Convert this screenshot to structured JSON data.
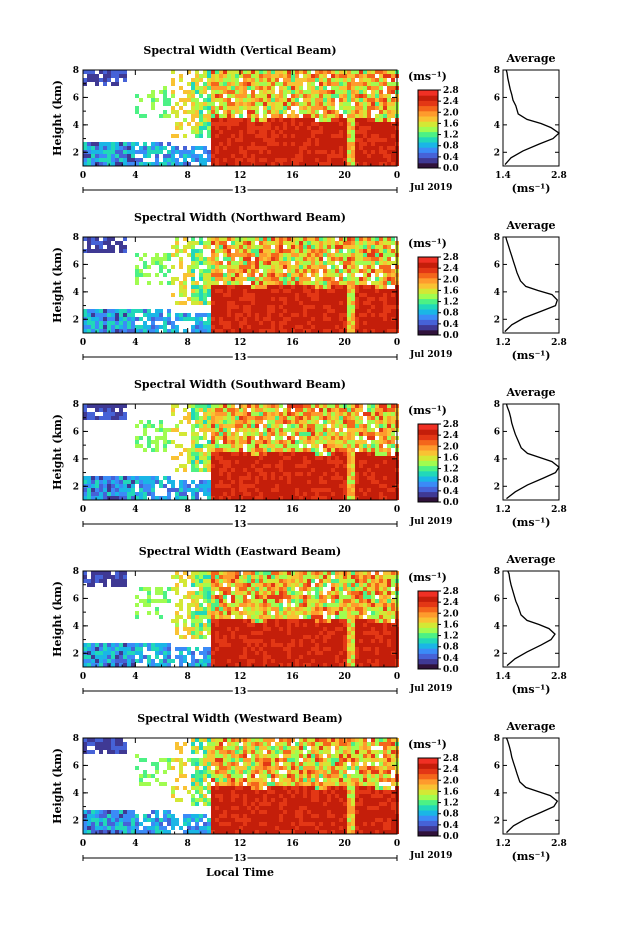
{
  "chart_data": [
    {
      "type": "heatmap",
      "title": "Spectral Width (Vertical Beam)",
      "xlabel": "",
      "ylabel": "Height (km)",
      "xlim": [
        0,
        24
      ],
      "ylim": [
        1,
        8
      ],
      "xticks": [
        "0",
        "4",
        "8",
        "12",
        "16",
        "20",
        "0"
      ],
      "yticks": [
        "2",
        "4",
        "6",
        "8"
      ],
      "date_center": "13",
      "date_label": "Jul 2019",
      "colorbar": {
        "unit": "(ms⁻¹)",
        "ticks": [
          "0.0",
          "0.4",
          "0.8",
          "1.2",
          "1.6",
          "2.0",
          "2.4",
          "2.8"
        ],
        "min": 0,
        "max": 2.8
      },
      "profile": {
        "title": "Average",
        "xlabel": "(ms⁻¹)",
        "xlim": [
          1.4,
          2.8
        ],
        "xticks": [
          "1.4",
          "2.8"
        ],
        "yticks": [
          "2",
          "4",
          "6",
          "8"
        ],
        "ylim": [
          1,
          8
        ],
        "x": [
          1.45,
          1.6,
          1.9,
          2.3,
          2.65,
          2.8,
          2.6,
          2.35,
          2.0,
          1.78,
          1.72,
          1.65,
          1.62,
          1.58,
          1.55,
          1.52,
          1.5,
          1.48
        ],
        "y": [
          1.1,
          1.6,
          2.1,
          2.6,
          3.0,
          3.4,
          3.8,
          4.1,
          4.4,
          4.8,
          5.4,
          5.8,
          6.2,
          6.6,
          7.0,
          7.4,
          7.8,
          8.0
        ]
      }
    },
    {
      "type": "heatmap",
      "title": "Spectral Width (Northward Beam)",
      "xlabel": "",
      "ylabel": "Height (km)",
      "xlim": [
        0,
        24
      ],
      "ylim": [
        1,
        8
      ],
      "xticks": [
        "0",
        "4",
        "8",
        "12",
        "16",
        "20",
        "0"
      ],
      "yticks": [
        "2",
        "4",
        "6",
        "8"
      ],
      "date_center": "13",
      "date_label": "Jul 2019",
      "colorbar": {
        "unit": "(ms⁻¹)",
        "ticks": [
          "0.0",
          "0.4",
          "0.8",
          "1.2",
          "1.6",
          "2.0",
          "2.4",
          "2.8"
        ],
        "min": 0,
        "max": 2.8
      },
      "profile": {
        "title": "Average",
        "xlabel": "(ms⁻¹)",
        "xlim": [
          1.2,
          2.8
        ],
        "xticks": [
          "1.2",
          "2.8"
        ],
        "yticks": [
          "2",
          "4",
          "6",
          "8"
        ],
        "ylim": [
          1,
          8
        ],
        "x": [
          1.25,
          1.45,
          1.8,
          2.3,
          2.7,
          2.75,
          2.6,
          2.2,
          1.85,
          1.7,
          1.6,
          1.55,
          1.5,
          1.45,
          1.4,
          1.35,
          1.3,
          1.28
        ],
        "y": [
          1.1,
          1.6,
          2.1,
          2.6,
          3.0,
          3.4,
          3.8,
          4.1,
          4.4,
          4.8,
          5.4,
          5.8,
          6.2,
          6.6,
          7.0,
          7.4,
          7.8,
          8.0
        ]
      }
    },
    {
      "type": "heatmap",
      "title": "Spectral Width (Southward Beam)",
      "xlabel": "",
      "ylabel": "Height (km)",
      "xlim": [
        0,
        24
      ],
      "ylim": [
        1,
        8
      ],
      "xticks": [
        "0",
        "4",
        "8",
        "12",
        "16",
        "20",
        "0"
      ],
      "yticks": [
        "2",
        "4",
        "6",
        "8"
      ],
      "date_center": "13",
      "date_label": "Jul 2019",
      "colorbar": {
        "unit": "(ms⁻¹)",
        "ticks": [
          "0.0",
          "0.4",
          "0.8",
          "1.2",
          "1.6",
          "2.0",
          "2.4",
          "2.8"
        ],
        "min": 0,
        "max": 2.8
      },
      "profile": {
        "title": "Average",
        "xlabel": "(ms⁻¹)",
        "xlim": [
          1.2,
          2.8
        ],
        "xticks": [
          "1.2",
          "2.8"
        ],
        "yticks": [
          "2",
          "4",
          "6",
          "8"
        ],
        "ylim": [
          1,
          8
        ],
        "x": [
          1.3,
          1.55,
          1.9,
          2.35,
          2.7,
          2.8,
          2.6,
          2.25,
          1.9,
          1.72,
          1.62,
          1.55,
          1.5,
          1.45,
          1.42,
          1.38,
          1.32,
          1.3
        ],
        "y": [
          1.1,
          1.6,
          2.1,
          2.6,
          3.0,
          3.4,
          3.8,
          4.1,
          4.4,
          4.8,
          5.4,
          5.8,
          6.2,
          6.6,
          7.0,
          7.4,
          7.8,
          8.0
        ]
      }
    },
    {
      "type": "heatmap",
      "title": "Spectral Width (Eastward Beam)",
      "xlabel": "",
      "ylabel": "Height (km)",
      "xlim": [
        0,
        24
      ],
      "ylim": [
        1,
        8
      ],
      "xticks": [
        "0",
        "4",
        "8",
        "12",
        "16",
        "20",
        "0"
      ],
      "yticks": [
        "2",
        "4",
        "6",
        "8"
      ],
      "date_center": "13",
      "date_label": "Jul 2019",
      "colorbar": {
        "unit": "(ms⁻¹)",
        "ticks": [
          "0.0",
          "0.4",
          "0.8",
          "1.2",
          "1.6",
          "2.0",
          "2.4",
          "2.8"
        ],
        "min": 0,
        "max": 2.8
      },
      "profile": {
        "title": "Average",
        "xlabel": "(ms⁻¹)",
        "xlim": [
          1.4,
          2.8
        ],
        "xticks": [
          "1.4",
          "2.8"
        ],
        "yticks": [
          "2",
          "4",
          "6",
          "8"
        ],
        "ylim": [
          1,
          8
        ],
        "x": [
          1.5,
          1.7,
          2.0,
          2.35,
          2.6,
          2.7,
          2.55,
          2.3,
          2.0,
          1.85,
          1.78,
          1.72,
          1.68,
          1.64,
          1.6,
          1.57,
          1.55,
          1.52
        ],
        "y": [
          1.1,
          1.6,
          2.1,
          2.6,
          3.0,
          3.4,
          3.8,
          4.1,
          4.4,
          4.8,
          5.4,
          5.8,
          6.2,
          6.6,
          7.0,
          7.4,
          7.8,
          8.0
        ]
      }
    },
    {
      "type": "heatmap",
      "title": "Spectral Width (Westward Beam)",
      "xlabel": "Local Time",
      "ylabel": "Height (km)",
      "xlim": [
        0,
        24
      ],
      "ylim": [
        1,
        8
      ],
      "xticks": [
        "0",
        "4",
        "8",
        "12",
        "16",
        "20",
        "0"
      ],
      "yticks": [
        "2",
        "4",
        "6",
        "8"
      ],
      "date_center": "13",
      "date_label": "Jul 2019",
      "colorbar": {
        "unit": "(ms⁻¹)",
        "ticks": [
          "0.0",
          "0.4",
          "0.8",
          "1.2",
          "1.6",
          "2.0",
          "2.4",
          "2.8"
        ],
        "min": 0,
        "max": 2.8
      },
      "profile": {
        "title": "Average",
        "xlabel": "(ms⁻¹)",
        "xlim": [
          1.2,
          2.8
        ],
        "xticks": [
          "1.2",
          "2.8"
        ],
        "yticks": [
          "2",
          "4",
          "6",
          "8"
        ],
        "ylim": [
          1,
          8
        ],
        "x": [
          1.3,
          1.5,
          1.85,
          2.3,
          2.65,
          2.75,
          2.55,
          2.2,
          1.85,
          1.68,
          1.6,
          1.55,
          1.5,
          1.45,
          1.42,
          1.38,
          1.33,
          1.3
        ],
        "y": [
          1.1,
          1.6,
          2.1,
          2.6,
          3.0,
          3.4,
          3.8,
          4.1,
          4.4,
          4.8,
          5.4,
          5.8,
          6.2,
          6.6,
          7.0,
          7.4,
          7.8,
          8.0
        ]
      }
    }
  ],
  "colors": {
    "scale": [
      "#30123b",
      "#3f3994",
      "#4662d7",
      "#3b8bf7",
      "#1ab6e6",
      "#21d8b9",
      "#4cf185",
      "#a0fc50",
      "#d3e835",
      "#f9c233",
      "#fe9b2d",
      "#f4661b",
      "#e33715",
      "#c41e0a",
      "#f03024"
    ]
  }
}
